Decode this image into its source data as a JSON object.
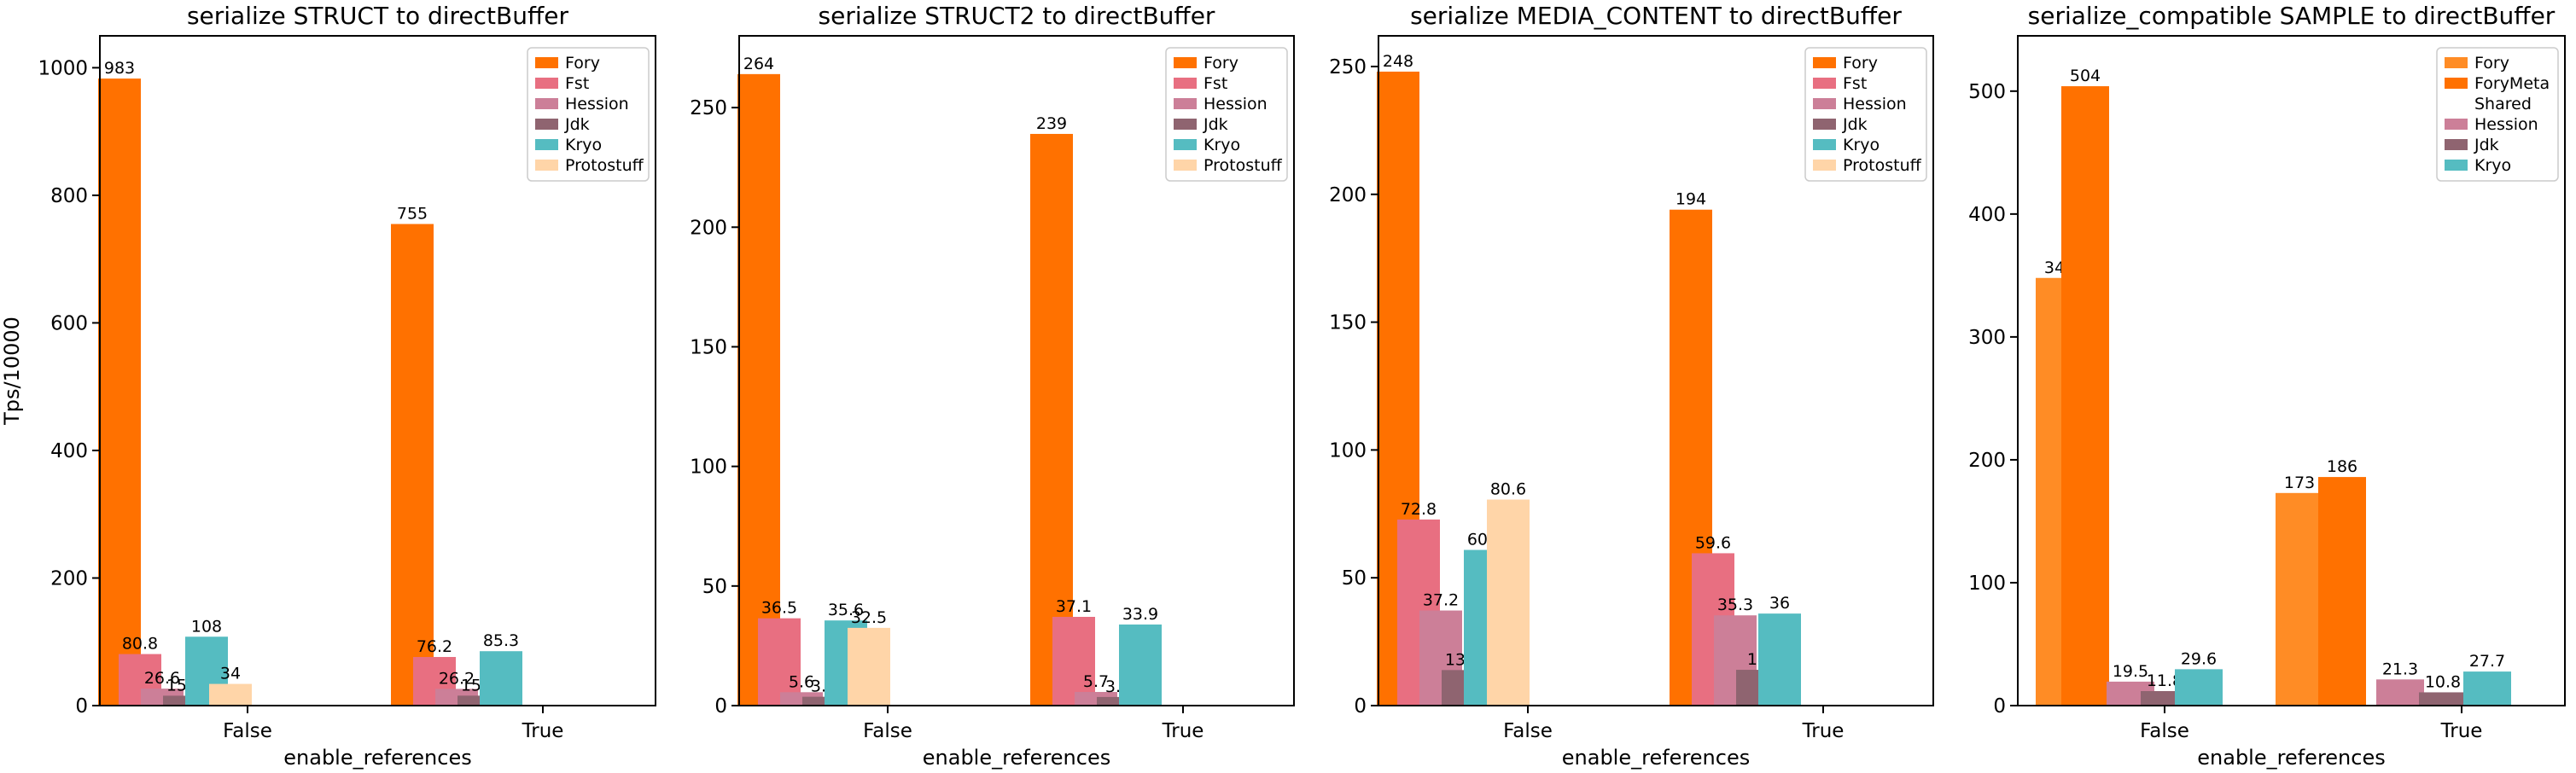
{
  "chart_data": [
    {
      "type": "bar",
      "title": "serialize STRUCT to directBuffer",
      "xlabel": "enable_references",
      "ylabel": "Tps/10000",
      "categories": [
        "False",
        "True"
      ],
      "ylim": [
        0,
        1050
      ],
      "yticks": [
        0,
        200,
        400,
        600,
        800,
        1000
      ],
      "legend": "top-right",
      "series": [
        {
          "name": "Fory",
          "color": "#ff7100",
          "values": [
            983,
            755
          ],
          "labels": [
            "983",
            "755"
          ]
        },
        {
          "name": "Fst",
          "color": "#e86f81",
          "values": [
            80.8,
            76.2
          ],
          "labels": [
            "80.8",
            "76.2"
          ]
        },
        {
          "name": "Hession",
          "color": "#cc7f98",
          "values": [
            26.6,
            26.2
          ],
          "labels": [
            "26.6",
            "26.2"
          ]
        },
        {
          "name": "Jdk",
          "color": "#8f6470",
          "values": [
            15.5,
            15.6
          ],
          "labels": [
            "15.5",
            "15.6"
          ]
        },
        {
          "name": "Kryo",
          "color": "#55bcc1",
          "values": [
            108,
            85.3
          ],
          "labels": [
            "108",
            "85.3"
          ]
        },
        {
          "name": "Protostuff",
          "color": "#ffd5a8",
          "values": [
            34,
            null
          ],
          "labels": [
            "34",
            null
          ]
        }
      ]
    },
    {
      "type": "bar",
      "title": "serialize STRUCT2 to directBuffer",
      "xlabel": "enable_references",
      "ylabel": "",
      "categories": [
        "False",
        "True"
      ],
      "ylim": [
        0,
        280
      ],
      "yticks": [
        0,
        50,
        100,
        150,
        200,
        250
      ],
      "legend": "top-right",
      "series": [
        {
          "name": "Fory",
          "color": "#ff7100",
          "values": [
            264,
            239
          ],
          "labels": [
            "264",
            "239"
          ]
        },
        {
          "name": "Fst",
          "color": "#e86f81",
          "values": [
            36.5,
            37.1
          ],
          "labels": [
            "36.5",
            "37.1"
          ]
        },
        {
          "name": "Hession",
          "color": "#cc7f98",
          "values": [
            5.6,
            5.7
          ],
          "labels": [
            "5.6",
            "5.7"
          ]
        },
        {
          "name": "Jdk",
          "color": "#8f6470",
          "values": [
            3.7,
            3.6
          ],
          "labels": [
            "3.7",
            "3.6"
          ]
        },
        {
          "name": "Kryo",
          "color": "#55bcc1",
          "values": [
            35.6,
            33.9
          ],
          "labels": [
            "35.6",
            "33.9"
          ]
        },
        {
          "name": "Protostuff",
          "color": "#ffd5a8",
          "values": [
            32.5,
            null
          ],
          "labels": [
            "32.5",
            null
          ]
        }
      ]
    },
    {
      "type": "bar",
      "title": "serialize MEDIA_CONTENT to directBuffer",
      "xlabel": "enable_references",
      "ylabel": "",
      "categories": [
        "False",
        "True"
      ],
      "ylim": [
        0,
        262
      ],
      "yticks": [
        0,
        50,
        100,
        150,
        200,
        250
      ],
      "legend": "top-right",
      "series": [
        {
          "name": "Fory",
          "color": "#ff7100",
          "values": [
            248,
            194
          ],
          "labels": [
            "248",
            "194"
          ]
        },
        {
          "name": "Fst",
          "color": "#e86f81",
          "values": [
            72.8,
            59.6
          ],
          "labels": [
            "72.8",
            "59.6"
          ]
        },
        {
          "name": "Hession",
          "color": "#cc7f98",
          "values": [
            37.2,
            35.3
          ],
          "labels": [
            "37.2",
            "35.3"
          ]
        },
        {
          "name": "Jdk",
          "color": "#8f6470",
          "values": [
            13.9,
            14
          ],
          "labels": [
            "13.9",
            "14"
          ]
        },
        {
          "name": "Kryo",
          "color": "#55bcc1",
          "values": [
            60.9,
            36
          ],
          "labels": [
            "60.9",
            "36"
          ]
        },
        {
          "name": "Protostuff",
          "color": "#ffd5a8",
          "values": [
            80.6,
            null
          ],
          "labels": [
            "80.6",
            null
          ]
        }
      ]
    },
    {
      "type": "bar",
      "title": "serialize_compatible SAMPLE to directBuffer",
      "xlabel": "enable_references",
      "ylabel": "",
      "categories": [
        "False",
        "True"
      ],
      "ylim": [
        0,
        545
      ],
      "yticks": [
        0,
        100,
        200,
        300,
        400,
        500
      ],
      "legend": "top-right",
      "series": [
        {
          "name": "Fory",
          "color": "#ff8c25",
          "values": [
            348,
            173
          ],
          "labels": [
            "348",
            "173"
          ]
        },
        {
          "name": "ForyMeta\nShared",
          "color": "#ff7100",
          "values": [
            504,
            186
          ],
          "labels": [
            "504",
            "186"
          ]
        },
        {
          "name": "Hession",
          "color": "#cc7f98",
          "values": [
            19.5,
            21.3
          ],
          "labels": [
            "19.5",
            "21.3"
          ]
        },
        {
          "name": "Jdk",
          "color": "#8f6470",
          "values": [
            11.8,
            10.8
          ],
          "labels": [
            "11.8",
            "10.8"
          ]
        },
        {
          "name": "Kryo",
          "color": "#55bcc1",
          "values": [
            29.6,
            27.7
          ],
          "labels": [
            "29.6",
            "27.7"
          ]
        }
      ]
    }
  ]
}
